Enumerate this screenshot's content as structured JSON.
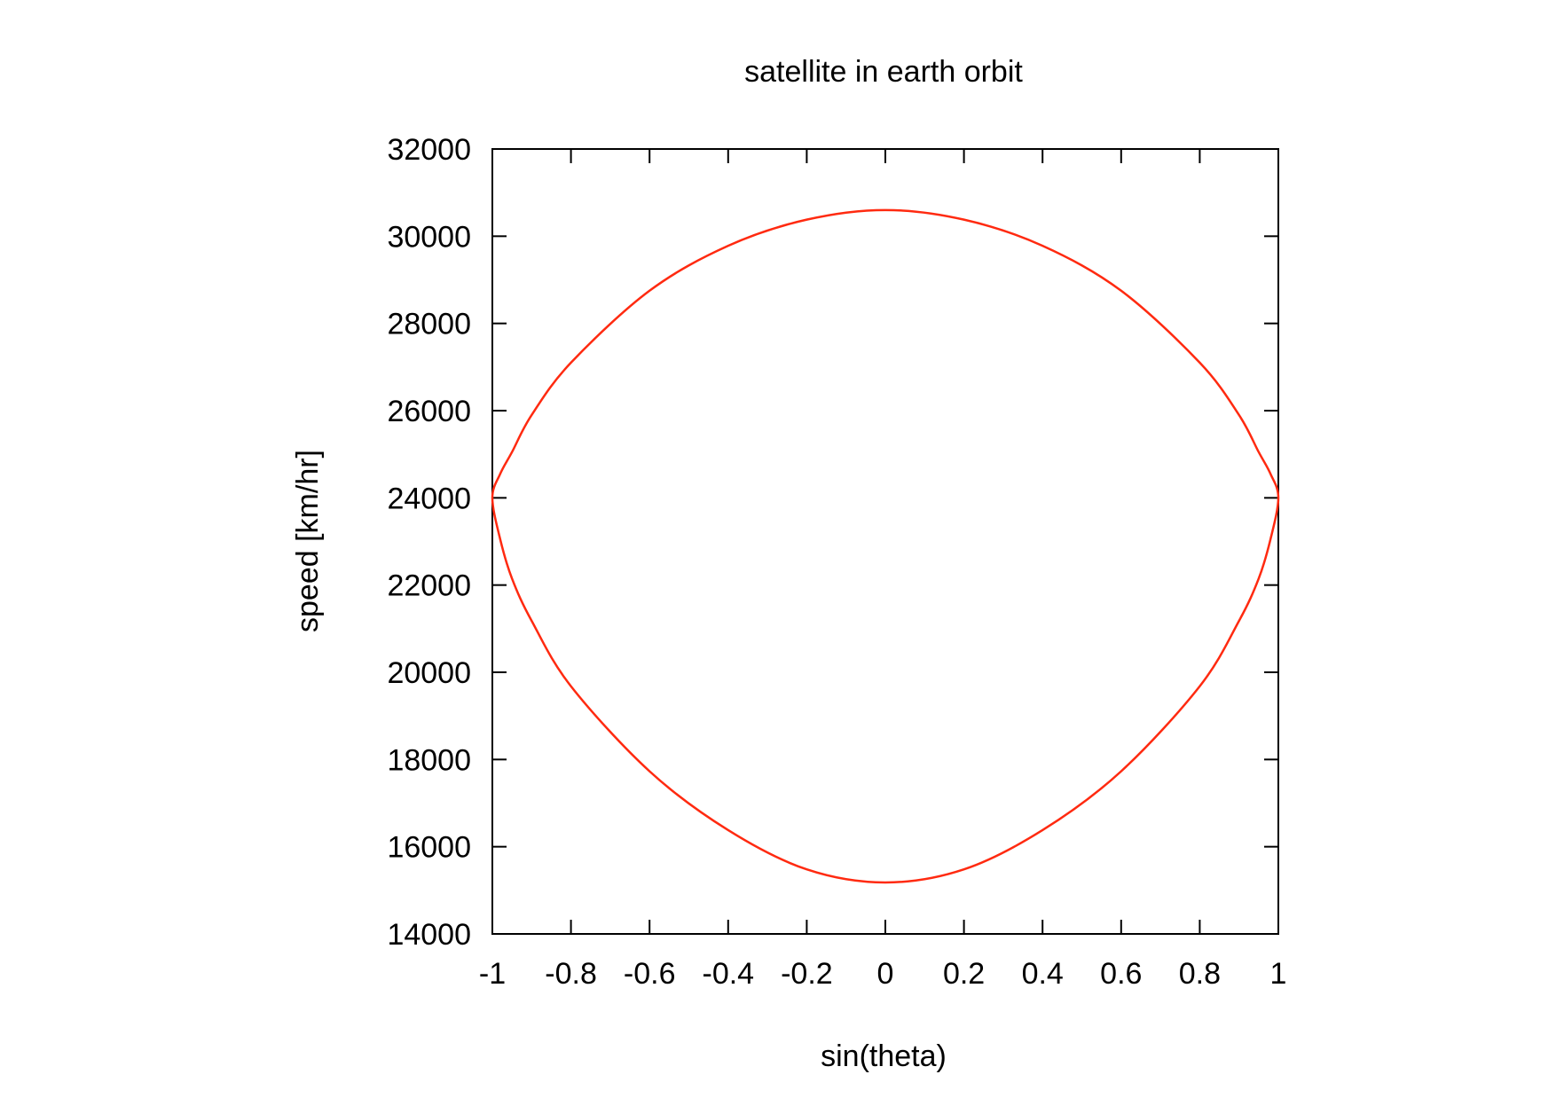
{
  "chart_data": {
    "type": "line",
    "title": "satellite in earth orbit",
    "xlabel": "sin(theta)",
    "ylabel": "speed [km/hr]",
    "xlim": [
      -1,
      1
    ],
    "ylim": [
      14000,
      32000
    ],
    "x_ticks": [
      -1,
      -0.8,
      -0.6,
      -0.4,
      -0.2,
      0,
      0.2,
      0.4,
      0.6,
      0.8,
      1
    ],
    "x_tick_labels": [
      "-1",
      "-0.8",
      "-0.6",
      "-0.4",
      "-0.2",
      "0",
      "0.2",
      "0.4",
      "0.6",
      "0.8",
      "1"
    ],
    "y_ticks": [
      14000,
      16000,
      18000,
      20000,
      22000,
      24000,
      26000,
      28000,
      30000,
      32000
    ],
    "y_tick_labels": [
      "14000",
      "16000",
      "18000",
      "20000",
      "22000",
      "24000",
      "26000",
      "28000",
      "30000",
      "32000"
    ],
    "grid": false,
    "series": [
      {
        "color": "#ff2a10",
        "x": [
          0,
          0.2,
          0.4,
          0.6,
          0.8,
          0.9,
          0.95,
          0.98,
          1,
          0.98,
          0.95,
          0.9,
          0.8,
          0.6,
          0.4,
          0.2,
          0,
          -0.2,
          -0.4,
          -0.6,
          -0.8,
          -0.9,
          -0.95,
          -0.98,
          -1,
          -0.98,
          -0.95,
          -0.9,
          -0.8,
          -0.6,
          -0.4,
          -0.2,
          0
        ],
        "y": [
          30600,
          30380,
          29780,
          28750,
          27100,
          25900,
          25050,
          24550,
          24000,
          23050,
          22150,
          21180,
          19680,
          17730,
          16380,
          15480,
          15180,
          15480,
          16380,
          17730,
          19680,
          21180,
          22150,
          23050,
          24000,
          24550,
          25050,
          25900,
          27100,
          28750,
          29780,
          30380,
          30600
        ]
      }
    ]
  }
}
